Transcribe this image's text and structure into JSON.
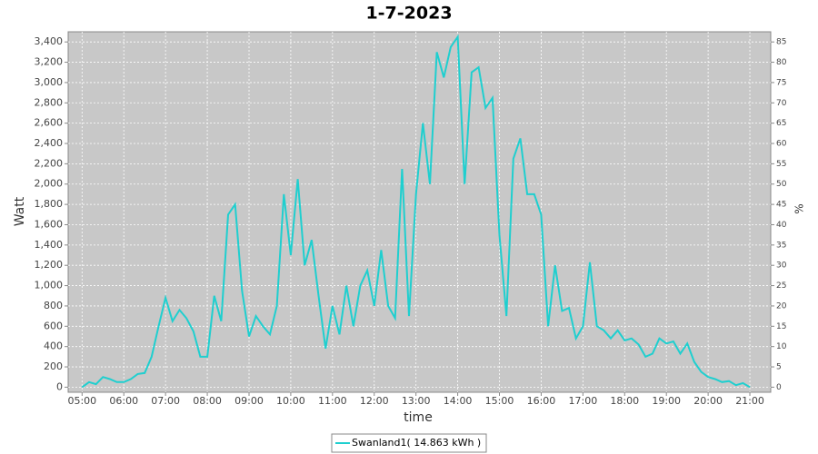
{
  "chart_data": {
    "type": "line",
    "title": "1-7-2023",
    "x_label": "time",
    "y_label": "Watt",
    "y2_label": "%",
    "grid": true,
    "background": "#c8c8c8",
    "x": [
      "05:00",
      "05:10",
      "05:20",
      "05:30",
      "05:40",
      "05:50",
      "06:00",
      "06:10",
      "06:20",
      "06:30",
      "06:40",
      "06:50",
      "07:00",
      "07:10",
      "07:20",
      "07:30",
      "07:40",
      "07:50",
      "08:00",
      "08:10",
      "08:20",
      "08:30",
      "08:40",
      "08:50",
      "09:00",
      "09:10",
      "09:20",
      "09:30",
      "09:40",
      "09:50",
      "10:00",
      "10:10",
      "10:20",
      "10:30",
      "10:40",
      "10:50",
      "11:00",
      "11:10",
      "11:20",
      "11:30",
      "11:40",
      "11:50",
      "12:00",
      "12:10",
      "12:20",
      "12:30",
      "12:40",
      "12:50",
      "13:00",
      "13:10",
      "13:20",
      "13:30",
      "13:40",
      "13:50",
      "14:00",
      "14:10",
      "14:20",
      "14:30",
      "14:40",
      "14:50",
      "15:00",
      "15:10",
      "15:20",
      "15:30",
      "15:40",
      "15:50",
      "16:00",
      "16:10",
      "16:20",
      "16:30",
      "16:40",
      "16:50",
      "17:00",
      "17:10",
      "17:20",
      "17:30",
      "17:40",
      "17:50",
      "18:00",
      "18:10",
      "18:20",
      "18:30",
      "18:40",
      "18:50",
      "19:00",
      "19:10",
      "19:20",
      "19:30",
      "19:40",
      "19:50",
      "20:00",
      "20:10",
      "20:20",
      "20:30",
      "20:40",
      "20:50",
      "21:00"
    ],
    "series": [
      {
        "name": "Swanland1( 14.863 kWh )",
        "color": "#1fcfcf",
        "values": [
          0,
          50,
          30,
          100,
          80,
          50,
          50,
          80,
          130,
          140,
          300,
          600,
          880,
          650,
          760,
          680,
          550,
          300,
          300,
          900,
          650,
          1700,
          1800,
          950,
          500,
          700,
          600,
          520,
          800,
          1900,
          1300,
          2050,
          1200,
          1450,
          900,
          380,
          800,
          520,
          1000,
          600,
          1000,
          1150,
          800,
          1350,
          800,
          680,
          2150,
          700,
          1900,
          2600,
          2000,
          3300,
          3050,
          3350,
          3450,
          2000,
          3100,
          3150,
          2750,
          2850,
          1500,
          700,
          2250,
          2450,
          1900,
          1900,
          1700,
          600,
          1200,
          750,
          780,
          480,
          600,
          1230,
          600,
          560,
          480,
          560,
          460,
          480,
          420,
          300,
          330,
          480,
          430,
          450,
          330,
          430,
          250,
          150,
          100,
          80,
          50,
          60,
          20,
          40,
          0
        ]
      }
    ],
    "xlim": [
      "04:40",
      "21:30"
    ],
    "xticks": [
      "05:00",
      "06:00",
      "07:00",
      "08:00",
      "09:00",
      "10:00",
      "11:00",
      "12:00",
      "13:00",
      "14:00",
      "15:00",
      "16:00",
      "17:00",
      "18:00",
      "19:00",
      "20:00",
      "21:00"
    ],
    "ylim": [
      -50,
      3500
    ],
    "yticks": [
      0,
      200,
      400,
      600,
      800,
      {
        "value": 1000,
        "label": "1,000"
      },
      {
        "value": 1200,
        "label": "1,200"
      },
      {
        "value": 1400,
        "label": "1,400"
      },
      {
        "value": 1600,
        "label": "1,600"
      },
      {
        "value": 1800,
        "label": "1,800"
      },
      {
        "value": 2000,
        "label": "2,000"
      },
      {
        "value": 2200,
        "label": "2,200"
      },
      {
        "value": 2400,
        "label": "2,400"
      },
      {
        "value": 2600,
        "label": "2,600"
      },
      {
        "value": 2800,
        "label": "2,800"
      },
      {
        "value": 3000,
        "label": "3,000"
      },
      {
        "value": 3200,
        "label": "3,200"
      },
      {
        "value": 3400,
        "label": "3,400"
      }
    ],
    "y2lim": [
      -1.25,
      87.5
    ],
    "y2ticks": [
      0,
      5,
      10,
      15,
      20,
      25,
      30,
      35,
      40,
      45,
      50,
      55,
      60,
      65,
      70,
      75,
      80,
      85
    ]
  }
}
